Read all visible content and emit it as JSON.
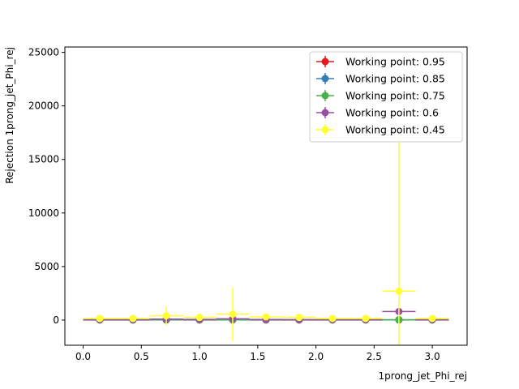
{
  "chart_data": {
    "type": "scatter",
    "title": "",
    "xlabel": "1prong_jet_Phi_rej",
    "ylabel": "Rejection 1prong_jet_Phi_rej",
    "xlim": [
      -0.157,
      3.299
    ],
    "ylim": [
      -2350,
      25500
    ],
    "x_ticks": [
      "0.0",
      "0.5",
      "1.0",
      "1.5",
      "2.0",
      "2.5",
      "3.0"
    ],
    "y_ticks": [
      "0",
      "5000",
      "10000",
      "15000",
      "20000",
      "25000"
    ],
    "grid": false,
    "legend_position": "top-right",
    "x_bins": [
      0.143,
      0.428,
      0.714,
      1.0,
      1.285,
      1.571,
      1.856,
      2.142,
      2.427,
      2.713,
      2.999
    ],
    "x_halfwidth": 0.143,
    "series": [
      {
        "name": "Working point: 0.95",
        "color": "#e41a1c",
        "values": [
          10,
          10,
          12,
          10,
          11,
          10,
          10,
          10,
          10,
          12,
          10
        ],
        "yerr": [
          1,
          1,
          2,
          1,
          2,
          1,
          1,
          1,
          1,
          2,
          1
        ]
      },
      {
        "name": "Working point: 0.85",
        "color": "#377eb8",
        "values": [
          15,
          15,
          18,
          15,
          16,
          15,
          15,
          15,
          15,
          18,
          15
        ],
        "yerr": [
          2,
          2,
          3,
          2,
          3,
          2,
          2,
          2,
          2,
          3,
          2
        ]
      },
      {
        "name": "Working point: 0.75",
        "color": "#4daf4a",
        "values": [
          25,
          25,
          35,
          28,
          30,
          25,
          25,
          25,
          25,
          35,
          25
        ],
        "yerr": [
          3,
          3,
          8,
          4,
          6,
          3,
          3,
          3,
          3,
          8,
          3
        ]
      },
      {
        "name": "Working point: 0.6",
        "color": "#984ea3",
        "values": [
          45,
          45,
          90,
          60,
          120,
          50,
          45,
          45,
          45,
          800,
          45
        ],
        "yerr": [
          6,
          6,
          30,
          12,
          50,
          8,
          6,
          6,
          6,
          250,
          6
        ]
      },
      {
        "name": "Working point: 0.45",
        "color": "#ffff33",
        "values": [
          150,
          150,
          400,
          250,
          550,
          300,
          250,
          150,
          150,
          2700,
          150
        ],
        "yerr": [
          30,
          30,
          900,
          300,
          2500,
          150,
          100,
          30,
          30,
          14500,
          30
        ]
      }
    ]
  }
}
